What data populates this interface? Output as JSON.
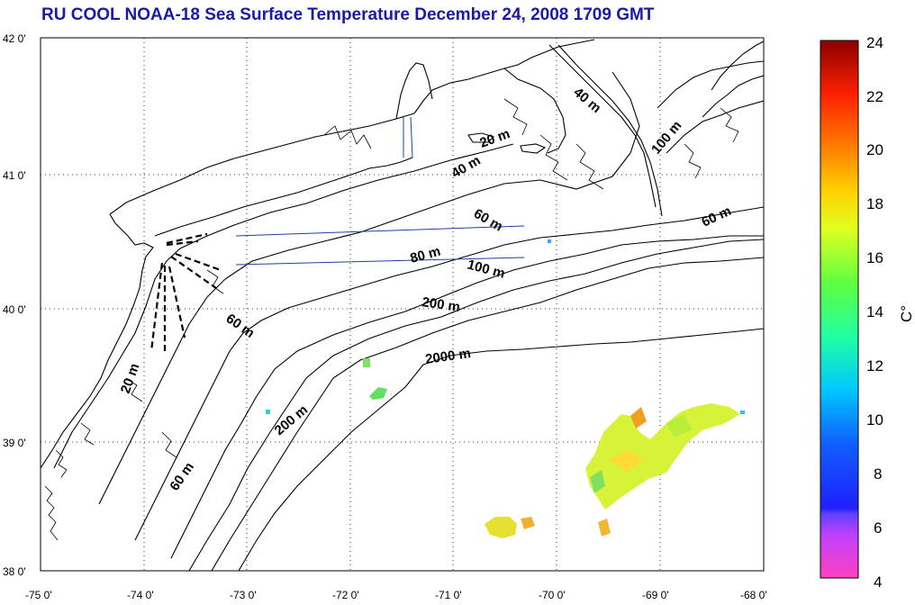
{
  "title": "RU COOL  NOAA-18 Sea Surface Temperature December 24, 2008 1709 GMT",
  "colorbar": {
    "unit_label": "C°",
    "ticks": [
      "24",
      "22",
      "20",
      "18",
      "16",
      "14",
      "12",
      "10",
      "8",
      "6",
      "4"
    ],
    "range": [
      4,
      24
    ],
    "colors": [
      "#ff40c0",
      "#a040ff",
      "#2020ff",
      "#00c8ff",
      "#20ffa0",
      "#60ff40",
      "#e0ff20",
      "#ffd000",
      "#ff8000",
      "#ff2000",
      "#8b0000"
    ]
  },
  "axes": {
    "lat_labels": [
      "42 0'",
      "41 0'",
      "40 0'",
      "39 0'",
      "38 0'"
    ],
    "lon_labels": [
      "-75 0'",
      "-74 0'",
      "-73 0'",
      "-72 0'",
      "-71 0'",
      "-70 0'",
      "-69 0'",
      "-68 0'"
    ],
    "grid": true
  },
  "isobath_labels": [
    "40 m",
    "100 m",
    "20 m",
    "40 m",
    "60 m",
    "60 m",
    "80 m",
    "100 m",
    "200 m",
    "60 m",
    "2000 m",
    "20 m",
    "200 m",
    "60 m"
  ],
  "colors": {
    "title": "#1a1aa8",
    "coast": "#000000",
    "transect": "#2040a0"
  }
}
